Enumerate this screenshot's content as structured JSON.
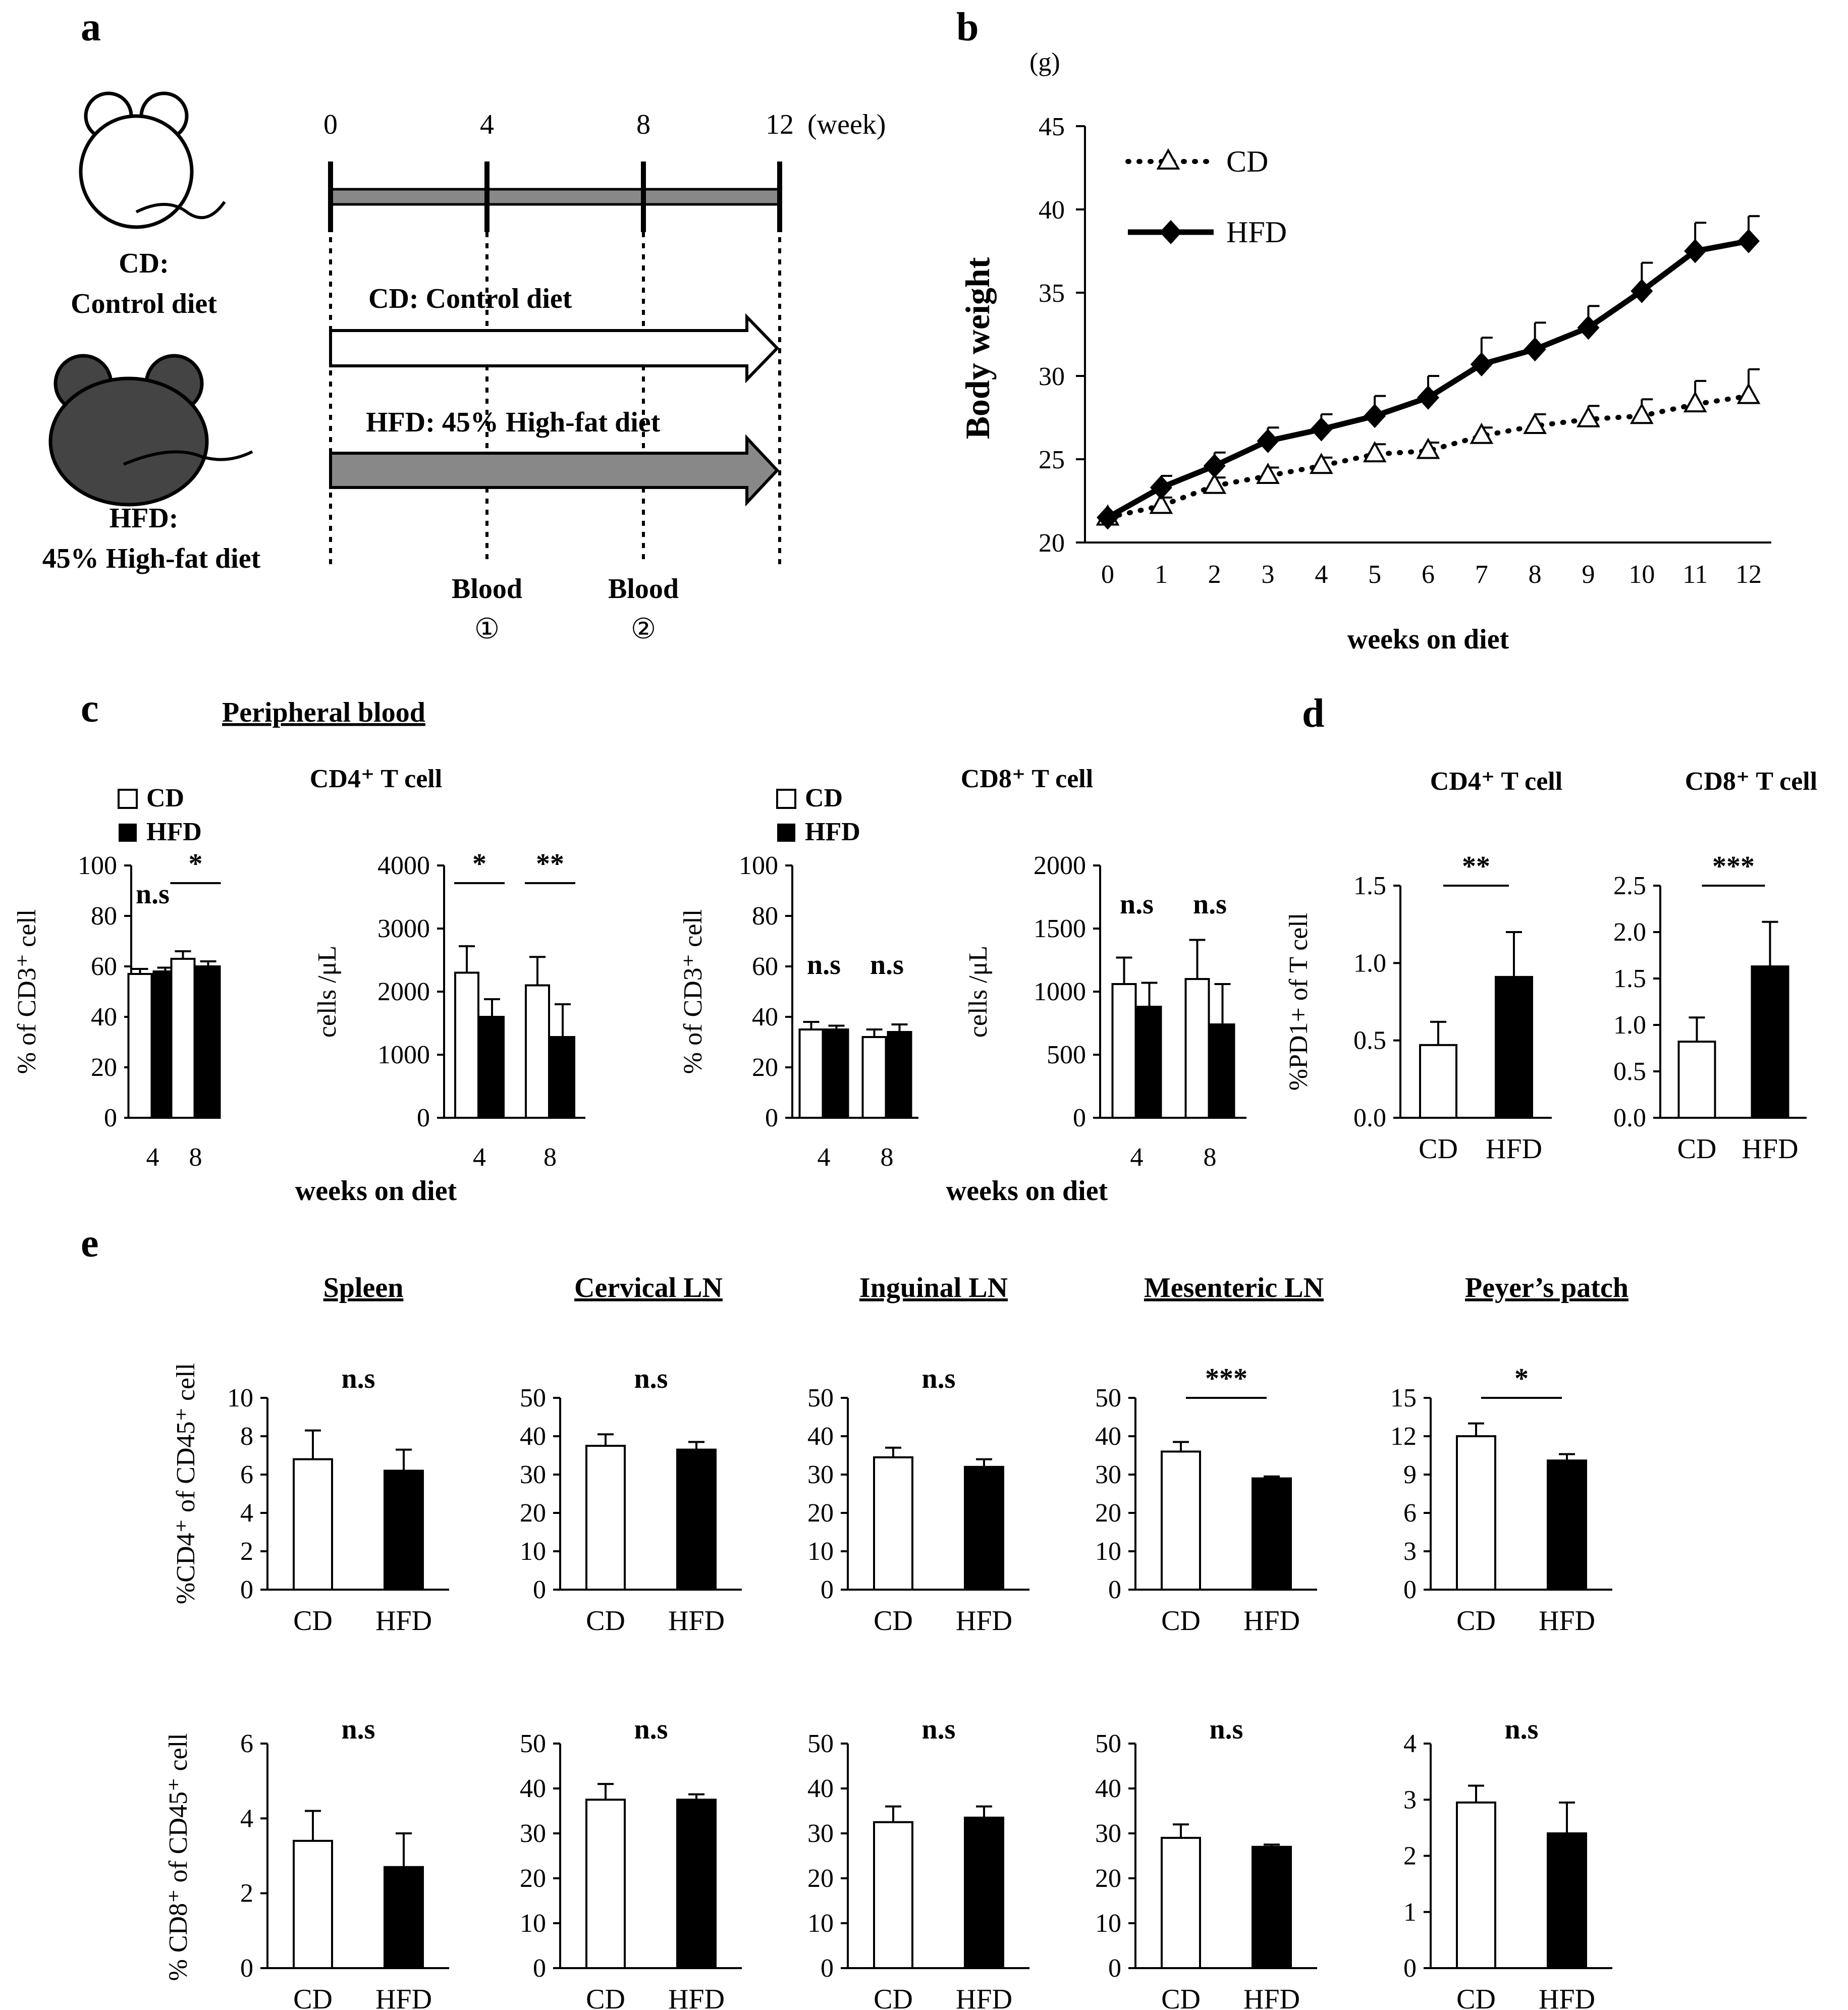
{
  "panels": {
    "a": "a",
    "b": "b",
    "c": "c",
    "d": "d",
    "e": "e"
  },
  "panel_a": {
    "cd_label": "CD:",
    "cd_desc": "Control diet",
    "hfd_label": "HFD:",
    "hfd_desc": "45% High-fat diet",
    "weeks": [
      "0",
      "4",
      "8",
      "12"
    ],
    "week_unit": "(week)",
    "cd_arrow": "CD: Control diet",
    "hfd_arrow": "HFD: 45% High-fat diet",
    "blood1": "Blood",
    "blood1_num": "①",
    "blood2": "Blood",
    "blood2_num": "②",
    "colors": {
      "cd": "#ffffff",
      "hfd": "#444444",
      "bar": "#888888"
    }
  },
  "chart_data": [
    {
      "id": "b",
      "type": "line",
      "unit": "(g)",
      "ylabel": "Body weight",
      "xlabel": "weeks on diet",
      "ylim": [
        20,
        45
      ],
      "yticks": [
        20,
        25,
        30,
        35,
        40,
        45
      ],
      "x": [
        0,
        1,
        2,
        3,
        4,
        5,
        6,
        7,
        8,
        9,
        10,
        11,
        12
      ],
      "series": [
        {
          "name": "CD",
          "marker": "open-triangle",
          "style": "dotted",
          "values": [
            21.5,
            22.2,
            23.4,
            24.0,
            24.6,
            25.3,
            25.5,
            26.4,
            27.0,
            27.4,
            27.6,
            28.3,
            28.8
          ],
          "errors": [
            0.3,
            0.5,
            0.5,
            0.5,
            0.5,
            0.6,
            0.5,
            0.5,
            0.7,
            0.8,
            1.0,
            1.4,
            1.6
          ]
        },
        {
          "name": "HFD",
          "marker": "filled-diamond",
          "style": "solid",
          "values": [
            21.5,
            23.3,
            24.6,
            26.1,
            26.8,
            27.6,
            28.7,
            30.7,
            31.6,
            32.9,
            35.1,
            37.5,
            38.1
          ],
          "errors": [
            0.3,
            0.7,
            0.8,
            0.8,
            0.9,
            1.2,
            1.3,
            1.6,
            1.6,
            1.3,
            1.7,
            1.7,
            1.5
          ]
        }
      ]
    },
    {
      "id": "c-cd4-pct",
      "type": "bar",
      "title": "CD4⁺ T cell",
      "ylabel": "% of CD3⁺ cell",
      "categories": [
        "4",
        "8"
      ],
      "ylim": [
        0,
        100
      ],
      "yticks": [
        0,
        20,
        40,
        60,
        80,
        100
      ],
      "series": [
        {
          "name": "CD",
          "values": [
            57,
            63
          ],
          "errors": [
            2,
            3
          ]
        },
        {
          "name": "HFD",
          "values": [
            58,
            60
          ],
          "errors": [
            1.5,
            2
          ]
        }
      ],
      "significance": [
        "n.s",
        "*"
      ]
    },
    {
      "id": "c-cd4-count",
      "type": "bar",
      "ylabel": "cells /μL",
      "categories": [
        "4",
        "8"
      ],
      "ylim": [
        0,
        4000
      ],
      "yticks": [
        0,
        1000,
        2000,
        3000,
        4000
      ],
      "series": [
        {
          "name": "CD",
          "values": [
            2300,
            2100
          ],
          "errors": [
            420,
            450
          ]
        },
        {
          "name": "HFD",
          "values": [
            1600,
            1280
          ],
          "errors": [
            280,
            520
          ]
        }
      ],
      "significance": [
        "*",
        "**"
      ]
    },
    {
      "id": "c-cd8-pct",
      "type": "bar",
      "title": "CD8⁺ T cell",
      "ylabel": "% of CD3⁺ cell",
      "categories": [
        "4",
        "8"
      ],
      "ylim": [
        0,
        100
      ],
      "yticks": [
        0,
        20,
        40,
        60,
        80,
        100
      ],
      "series": [
        {
          "name": "CD",
          "values": [
            35,
            32
          ],
          "errors": [
            3,
            3
          ]
        },
        {
          "name": "HFD",
          "values": [
            35,
            34
          ],
          "errors": [
            1.5,
            3
          ]
        }
      ],
      "significance": [
        "n.s",
        "n.s"
      ]
    },
    {
      "id": "c-cd8-count",
      "type": "bar",
      "ylabel": "cells /μL",
      "categories": [
        "4",
        "8"
      ],
      "ylim": [
        0,
        2000
      ],
      "yticks": [
        0,
        500,
        1000,
        1500,
        2000
      ],
      "series": [
        {
          "name": "CD",
          "values": [
            1060,
            1100
          ],
          "errors": [
            210,
            310
          ]
        },
        {
          "name": "HFD",
          "values": [
            880,
            740
          ],
          "errors": [
            190,
            320
          ]
        }
      ],
      "significance": [
        "n.s",
        "n.s"
      ]
    },
    {
      "id": "d-cd4",
      "type": "bar",
      "title": "CD4⁺ T cell",
      "ylabel": "%PD1+ of T cell",
      "categories": [
        "CD",
        "HFD"
      ],
      "ylim": [
        0,
        1.5
      ],
      "yticks": [
        "0.0",
        "0.5",
        "1.0",
        "1.5"
      ],
      "values": [
        0.47,
        0.91
      ],
      "errors": [
        0.15,
        0.29
      ],
      "significance": "**"
    },
    {
      "id": "d-cd8",
      "type": "bar",
      "title": "CD8⁺ T cell",
      "categories": [
        "CD",
        "HFD"
      ],
      "ylim": [
        0,
        2.5
      ],
      "yticks": [
        "0.0",
        "0.5",
        "1.0",
        "1.5",
        "2.0",
        "2.5"
      ],
      "values": [
        0.82,
        1.63
      ],
      "errors": [
        0.26,
        0.48
      ],
      "significance": "***"
    },
    {
      "id": "e-cd4-spleen",
      "type": "bar",
      "title": "Spleen",
      "ylabel": "%CD4⁺ of CD45⁺ cell",
      "categories": [
        "CD",
        "HFD"
      ],
      "ylim": [
        0,
        10
      ],
      "yticks": [
        0,
        2,
        4,
        6,
        8,
        10
      ],
      "values": [
        6.8,
        6.2
      ],
      "errors": [
        1.5,
        1.1
      ],
      "significance": "n.s"
    },
    {
      "id": "e-cd4-cervical",
      "type": "bar",
      "title": "Cervical LN",
      "categories": [
        "CD",
        "HFD"
      ],
      "ylim": [
        0,
        50
      ],
      "yticks": [
        0,
        10,
        20,
        30,
        40,
        50
      ],
      "values": [
        37.5,
        36.5
      ],
      "errors": [
        3,
        2
      ],
      "significance": "n.s"
    },
    {
      "id": "e-cd4-inguinal",
      "type": "bar",
      "title": "Inguinal LN",
      "categories": [
        "CD",
        "HFD"
      ],
      "ylim": [
        0,
        50
      ],
      "yticks": [
        0,
        10,
        20,
        30,
        40,
        50
      ],
      "values": [
        34.5,
        32
      ],
      "errors": [
        2.5,
        2
      ],
      "significance": "n.s"
    },
    {
      "id": "e-cd4-mesenteric",
      "type": "bar",
      "title": "Mesenteric LN",
      "categories": [
        "CD",
        "HFD"
      ],
      "ylim": [
        0,
        50
      ],
      "yticks": [
        0,
        10,
        20,
        30,
        40,
        50
      ],
      "values": [
        36,
        29
      ],
      "errors": [
        2.5,
        0.5
      ],
      "significance": "***"
    },
    {
      "id": "e-cd4-peyers",
      "type": "bar",
      "title": "Peyer’s patch",
      "categories": [
        "CD",
        "HFD"
      ],
      "ylim": [
        0,
        15
      ],
      "yticks": [
        0,
        3,
        6,
        9,
        12,
        15
      ],
      "values": [
        12,
        10.1
      ],
      "errors": [
        1,
        0.5
      ],
      "significance": "*"
    },
    {
      "id": "e-cd8-spleen",
      "type": "bar",
      "ylabel": "% CD8⁺ of CD45⁺ cell",
      "categories": [
        "CD",
        "HFD"
      ],
      "ylim": [
        0,
        6
      ],
      "yticks": [
        0,
        2,
        4,
        6
      ],
      "values": [
        3.4,
        2.7
      ],
      "errors": [
        0.8,
        0.9
      ],
      "significance": "n.s"
    },
    {
      "id": "e-cd8-cervical",
      "type": "bar",
      "categories": [
        "CD",
        "HFD"
      ],
      "ylim": [
        0,
        50
      ],
      "yticks": [
        0,
        10,
        20,
        30,
        40,
        50
      ],
      "values": [
        37.5,
        37.5
      ],
      "errors": [
        3.5,
        1.2
      ],
      "significance": "n.s"
    },
    {
      "id": "e-cd8-inguinal",
      "type": "bar",
      "categories": [
        "CD",
        "HFD"
      ],
      "ylim": [
        0,
        50
      ],
      "yticks": [
        0,
        10,
        20,
        30,
        40,
        50
      ],
      "values": [
        32.5,
        33.5
      ],
      "errors": [
        3.5,
        2.5
      ],
      "significance": "n.s"
    },
    {
      "id": "e-cd8-mesenteric",
      "type": "bar",
      "categories": [
        "CD",
        "HFD"
      ],
      "ylim": [
        0,
        50
      ],
      "yticks": [
        0,
        10,
        20,
        30,
        40,
        50
      ],
      "values": [
        29,
        27
      ],
      "errors": [
        3,
        0.5
      ],
      "significance": "n.s"
    },
    {
      "id": "e-cd8-peyers",
      "type": "bar",
      "categories": [
        "CD",
        "HFD"
      ],
      "ylim": [
        0,
        4
      ],
      "yticks": [
        0,
        1,
        2,
        3,
        4
      ],
      "values": [
        2.95,
        2.4
      ],
      "errors": [
        0.3,
        0.55
      ],
      "significance": "n.s"
    }
  ],
  "panel_c": {
    "heading": "Peripheral blood",
    "legend_cd": "CD",
    "legend_hfd": "HFD",
    "xlabel": "weeks on diet"
  },
  "panel_e": {
    "titles": [
      "Spleen",
      "Cervical LN",
      "Inguinal LN",
      "Mesenteric LN",
      "Peyer’s patch"
    ],
    "ylabel_cd4": "%CD4⁺ of CD45⁺ cell",
    "ylabel_cd8": "% CD8⁺ of CD45⁺ cell"
  }
}
